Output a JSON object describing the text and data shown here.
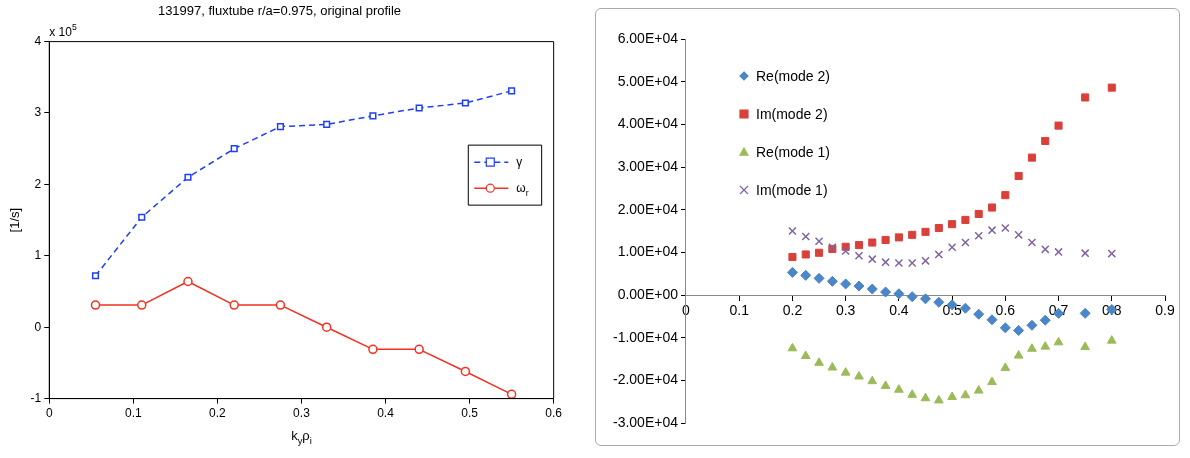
{
  "chart_data": [
    {
      "type": "line",
      "title": "131997, fluxtube r/a=0.975, original profile",
      "xlabel": "k$_{y}$ρ$_{i}$",
      "ylabel": "[1/s]",
      "annotations": [
        "x 10$^{5}$"
      ],
      "x": [
        0.055,
        0.11,
        0.165,
        0.22,
        0.275,
        0.33,
        0.385,
        0.44,
        0.495,
        0.55
      ],
      "series": [
        {
          "name": "γ",
          "color": "#1f3ff5",
          "marker": "square",
          "line_style": "dashed",
          "values": [
            0.72,
            1.54,
            2.1,
            2.5,
            2.81,
            2.84,
            2.96,
            3.07,
            3.14,
            3.31
          ]
        },
        {
          "name": "ω$_{r}$",
          "color": "#f5301f",
          "marker": "circle",
          "line_style": "solid",
          "values": [
            0.31,
            0.31,
            0.64,
            0.31,
            0.31,
            0,
            -0.31,
            -0.31,
            -0.62,
            -0.94
          ]
        }
      ],
      "xlim": [
        0,
        0.6
      ],
      "xticks": [
        0,
        0.1,
        0.2,
        0.3,
        0.4,
        0.5,
        0.6
      ],
      "ylim": [
        -1,
        4
      ],
      "yticks": [
        -1,
        0,
        1,
        2,
        3,
        4
      ],
      "grid": false,
      "legend": "right"
    },
    {
      "type": "scatter",
      "x": [
        0.2,
        0.225,
        0.25,
        0.275,
        0.3,
        0.325,
        0.35,
        0.375,
        0.4,
        0.425,
        0.45,
        0.475,
        0.5,
        0.525,
        0.55,
        0.575,
        0.6,
        0.625,
        0.65,
        0.675,
        0.7,
        0.75,
        0.8
      ],
      "series": [
        {
          "name": "Re(mode 2)",
          "color": "#4a86c8",
          "marker": "diamond",
          "values": [
            5300,
            4600,
            3900,
            3200,
            2600,
            2100,
            1400,
            700,
            300,
            -400,
            -900,
            -1700,
            -2300,
            -3100,
            -4500,
            -5800,
            -7700,
            -8300,
            -7100,
            -5900,
            -4300,
            -4300,
            -3400
          ]
        },
        {
          "name": "Im(mode 2)",
          "color": "#d9403a",
          "marker": "square",
          "values": [
            8900,
            9500,
            9900,
            10800,
            11300,
            11700,
            12300,
            12900,
            13500,
            14100,
            14800,
            15700,
            16600,
            17600,
            19000,
            20500,
            23400,
            27900,
            32200,
            36100,
            39700,
            46300,
            48600
          ]
        },
        {
          "name": "Re(mode 1)",
          "color": "#9bbb59",
          "marker": "triangle",
          "values": [
            -12500,
            -14300,
            -15900,
            -17000,
            -18200,
            -19100,
            -20200,
            -21300,
            -22200,
            -23400,
            -24200,
            -24700,
            -23900,
            -23500,
            -22400,
            -20400,
            -17100,
            -14200,
            -12600,
            -12100,
            -11100,
            -12200,
            -10700
          ]
        },
        {
          "name": "Im(mode 1)",
          "color": "#8064a2",
          "marker": "cross",
          "values": [
            15000,
            13700,
            12600,
            11200,
            10300,
            9200,
            8400,
            7700,
            7500,
            7500,
            8000,
            9500,
            11200,
            12300,
            13900,
            15200,
            15700,
            14100,
            12300,
            10700,
            10100,
            9800,
            9700
          ]
        }
      ],
      "xlim": [
        0,
        0.9
      ],
      "xticks": [
        0,
        0.1,
        0.2,
        0.3,
        0.4,
        0.5,
        0.6,
        0.7,
        0.8,
        0.9
      ],
      "ylim": [
        -30000,
        60000
      ],
      "yticks": [
        {
          "value": -30000,
          "label": "-3.00E+04"
        },
        {
          "value": -20000,
          "label": "-2.00E+04"
        },
        {
          "value": -10000,
          "label": "-1.00E+04"
        },
        {
          "value": 0,
          "label": "0.00E+00"
        },
        {
          "value": 10000,
          "label": "1.00E+04"
        },
        {
          "value": 20000,
          "label": "2.00E+04"
        },
        {
          "value": 30000,
          "label": "3.00E+04"
        },
        {
          "value": 40000,
          "label": "4.00E+04"
        },
        {
          "value": 50000,
          "label": "5.00E+04"
        },
        {
          "value": 60000,
          "label": "6.00E+04"
        }
      ],
      "grid": false,
      "legend": "top left"
    }
  ]
}
